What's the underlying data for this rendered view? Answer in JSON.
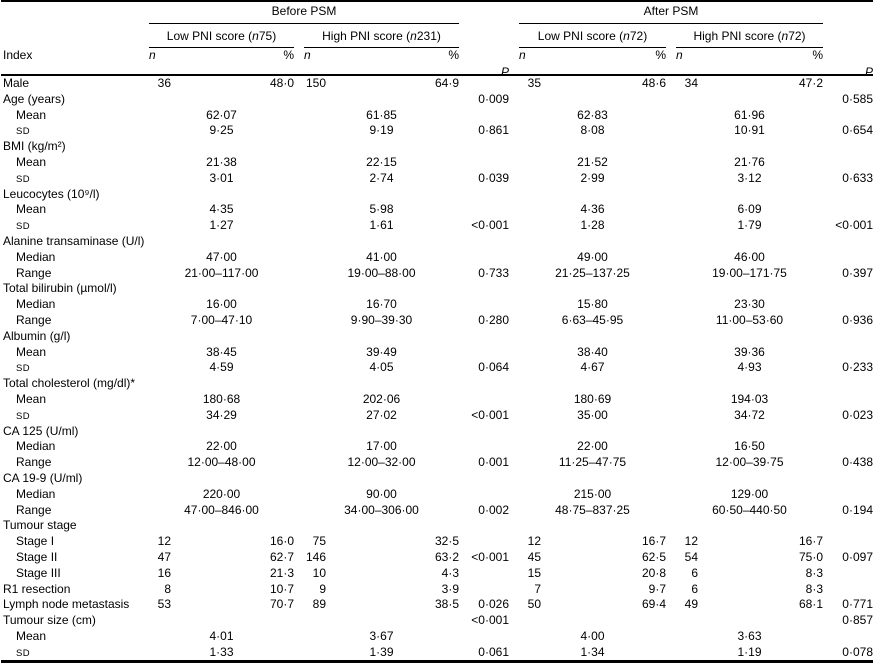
{
  "meta": {
    "background_color": "#ffffff",
    "text_color": "#000000",
    "description": "Clinical characteristics table comparing low and high PNI score groups before and after PSM"
  },
  "table": {
    "top_groups": [
      {
        "label": "Before PSM"
      },
      {
        "label": "After PSM"
      }
    ],
    "subgroups": [
      {
        "pre": "Low PNI score (",
        "n_italic": "n",
        "post": " 75)"
      },
      {
        "pre": "High PNI score (",
        "n_italic": "n",
        "post": " 231)"
      },
      {
        "pre": "Low PNI score (",
        "n_italic": "n",
        "post": " 72)"
      },
      {
        "pre": "High PNI score (",
        "n_italic": "n",
        "post": " 72)"
      }
    ],
    "col_headers": {
      "index": "Index",
      "n": "n",
      "pct": "%",
      "p": "P"
    },
    "rows": [
      {
        "label": "Male",
        "indent": 0,
        "g1n": "36",
        "g1p": "48·0",
        "g2n": "150",
        "g2p": "64·9",
        "pa": "0·009",
        "g3n": "35",
        "g3p": "48·6",
        "g4n": "34",
        "g4p": "47·2",
        "pb": "0·585"
      },
      {
        "label": "Age (years)",
        "indent": 0
      },
      {
        "label": "Mean",
        "indent": 1,
        "g1m": "62·07",
        "g2m": "61·85",
        "pa": "0·861",
        "g3m": "62·83",
        "g4m": "61·96",
        "pb": "0·654"
      },
      {
        "label": "SD",
        "indent": 1,
        "sc": true,
        "g1m": "9·25",
        "g2m": "9·19",
        "g3m": "8·08",
        "g4m": "10·91"
      },
      {
        "label": "BMI (kg/m²)",
        "indent": 0
      },
      {
        "label": "Mean",
        "indent": 1,
        "g1m": "21·38",
        "g2m": "22·15",
        "pa": "0·039",
        "g3m": "21·52",
        "g4m": "21·76",
        "pb": "0·633"
      },
      {
        "label": "SD",
        "indent": 1,
        "sc": true,
        "g1m": "3·01",
        "g2m": "2·74",
        "g3m": "2·99",
        "g4m": "3·12"
      },
      {
        "label": "Leucocytes (10⁹/l)",
        "indent": 0
      },
      {
        "label": "Mean",
        "indent": 1,
        "g1m": "4·35",
        "g2m": "5·98",
        "pa": "<0·001",
        "g3m": "4·36",
        "g4m": "6·09",
        "pb": "<0·001"
      },
      {
        "label": "SD",
        "indent": 1,
        "sc": true,
        "g1m": "1·27",
        "g2m": "1·61",
        "g3m": "1·28",
        "g4m": "1·79"
      },
      {
        "label": "Alanine transaminase (U/l)",
        "indent": 0
      },
      {
        "label": "Median",
        "indent": 1,
        "g1m": "47·00",
        "g2m": "41·00",
        "pa": "0·733",
        "g3m": "49·00",
        "g4m": "46·00",
        "pb": "0·397"
      },
      {
        "label": "Range",
        "indent": 1,
        "g1m": "21·00–117·00",
        "g2m": "19·00–88·00",
        "g3m": "21·25–137·25",
        "g4m": "19·00–171·75"
      },
      {
        "label": "Total bilirubin (µmol/l)",
        "indent": 0
      },
      {
        "label": "Median",
        "indent": 1,
        "g1m": "16·00",
        "g2m": "16·70",
        "pa": "0·280",
        "g3m": "15·80",
        "g4m": "23·30",
        "pb": "0·936"
      },
      {
        "label": "Range",
        "indent": 1,
        "g1m": "7·00–47·10",
        "g2m": "9·90–39·30",
        "g3m": "6·63–45·95",
        "g4m": "11·00–53·60"
      },
      {
        "label": "Albumin (g/l)",
        "indent": 0
      },
      {
        "label": "Mean",
        "indent": 1,
        "g1m": "38·45",
        "g2m": "39·49",
        "pa": "0·064",
        "g3m": "38·40",
        "g4m": "39·36",
        "pb": "0·233"
      },
      {
        "label": "SD",
        "indent": 1,
        "sc": true,
        "g1m": "4·59",
        "g2m": "4·05",
        "g3m": "4·67",
        "g4m": "4·93"
      },
      {
        "label": "Total cholesterol (mg/dl)*",
        "indent": 0
      },
      {
        "label": "Mean",
        "indent": 1,
        "g1m": "180·68",
        "g2m": "202·06",
        "pa": "<0·001",
        "g3m": "180·69",
        "g4m": "194·03",
        "pb": "0·023"
      },
      {
        "label": "SD",
        "indent": 1,
        "sc": true,
        "g1m": "34·29",
        "g2m": "27·02",
        "g3m": "35·00",
        "g4m": "34·72"
      },
      {
        "label": "CA 125 (U/ml)",
        "indent": 0
      },
      {
        "label": "Median",
        "indent": 1,
        "g1m": "22·00",
        "g2m": "17·00",
        "pa": "0·001",
        "g3m": "22·00",
        "g4m": "16·50",
        "pb": "0·438"
      },
      {
        "label": "Range",
        "indent": 1,
        "g1m": "12·00–48·00",
        "g2m": "12·00–32·00",
        "g3m": "11·25–47·75",
        "g4m": "12·00–39·75"
      },
      {
        "label": "CA 19-9 (U/ml)",
        "indent": 0
      },
      {
        "label": "Median",
        "indent": 1,
        "g1m": "220·00",
        "g2m": "90·00",
        "pa": "0·002",
        "g3m": "215·00",
        "g4m": "129·00",
        "pb": "0·194"
      },
      {
        "label": "Range",
        "indent": 1,
        "g1m": "47·00–846·00",
        "g2m": "34·00–306·00",
        "g3m": "48·75–837·25",
        "g4m": "60·50–440·50"
      },
      {
        "label": "Tumour stage",
        "indent": 0
      },
      {
        "label": "Stage I",
        "indent": 1,
        "g1n": "12",
        "g1p": "16·0",
        "g2n": "75",
        "g2p": "32·5",
        "pa": "<0·001",
        "g3n": "12",
        "g3p": "16·7",
        "g4n": "12",
        "g4p": "16·7",
        "pb": "0·097"
      },
      {
        "label": "Stage II",
        "indent": 1,
        "g1n": "47",
        "g1p": "62·7",
        "g2n": "146",
        "g2p": "63·2",
        "g3n": "45",
        "g3p": "62·5",
        "g4n": "54",
        "g4p": "75·0"
      },
      {
        "label": "Stage III",
        "indent": 1,
        "g1n": "16",
        "g1p": "21·3",
        "g2n": "10",
        "g2p": "4·3",
        "g3n": "15",
        "g3p": "20·8",
        "g4n": "6",
        "g4p": "8·3"
      },
      {
        "label": "R1 resection",
        "indent": 0,
        "g1n": "8",
        "g1p": "10·7",
        "g2n": "9",
        "g2p": "3·9",
        "pa": "0·026",
        "g3n": "7",
        "g3p": "9·7",
        "g4n": "6",
        "g4p": "8·3",
        "pb": "0·771"
      },
      {
        "label": "Lymph node metastasis",
        "indent": 0,
        "g1n": "53",
        "g1p": "70·7",
        "g2n": "89",
        "g2p": "38·5",
        "pa": "<0·001",
        "g3n": "50",
        "g3p": "69·4",
        "g4n": "49",
        "g4p": "68·1",
        "pb": "0·857"
      },
      {
        "label": "Tumour size (cm)",
        "indent": 0
      },
      {
        "label": "Mean",
        "indent": 1,
        "g1m": "4·01",
        "g2m": "3·67",
        "pa": "0·061",
        "g3m": "4·00",
        "g4m": "3·63",
        "pb": "0·078"
      },
      {
        "label": "SD",
        "indent": 1,
        "sc": true,
        "g1m": "1·33",
        "g2m": "1·39",
        "g3m": "1·34",
        "g4m": "1·19"
      }
    ]
  }
}
